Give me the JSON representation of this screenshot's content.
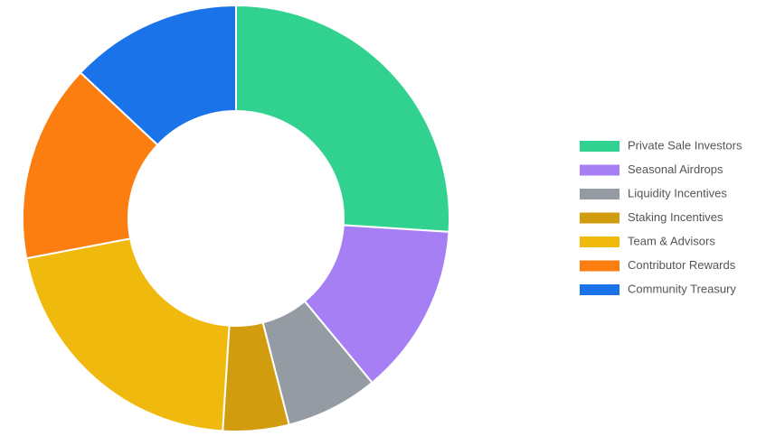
{
  "chart_data": {
    "type": "donut",
    "categories": [
      "Private Sale Investors",
      "Seasonal Airdrops",
      "Liquidity Incentives",
      "Staking Incentives",
      "Team & Advisors",
      "Contributor Rewards",
      "Community Treasury"
    ],
    "values": [
      26,
      13,
      7,
      5,
      21,
      15,
      13
    ],
    "colors": [
      "#31d28f",
      "#a77ff5",
      "#959ba3",
      "#d29c0f",
      "#f0b90e",
      "#fc7d10",
      "#1a73e8"
    ],
    "legend": "right"
  }
}
